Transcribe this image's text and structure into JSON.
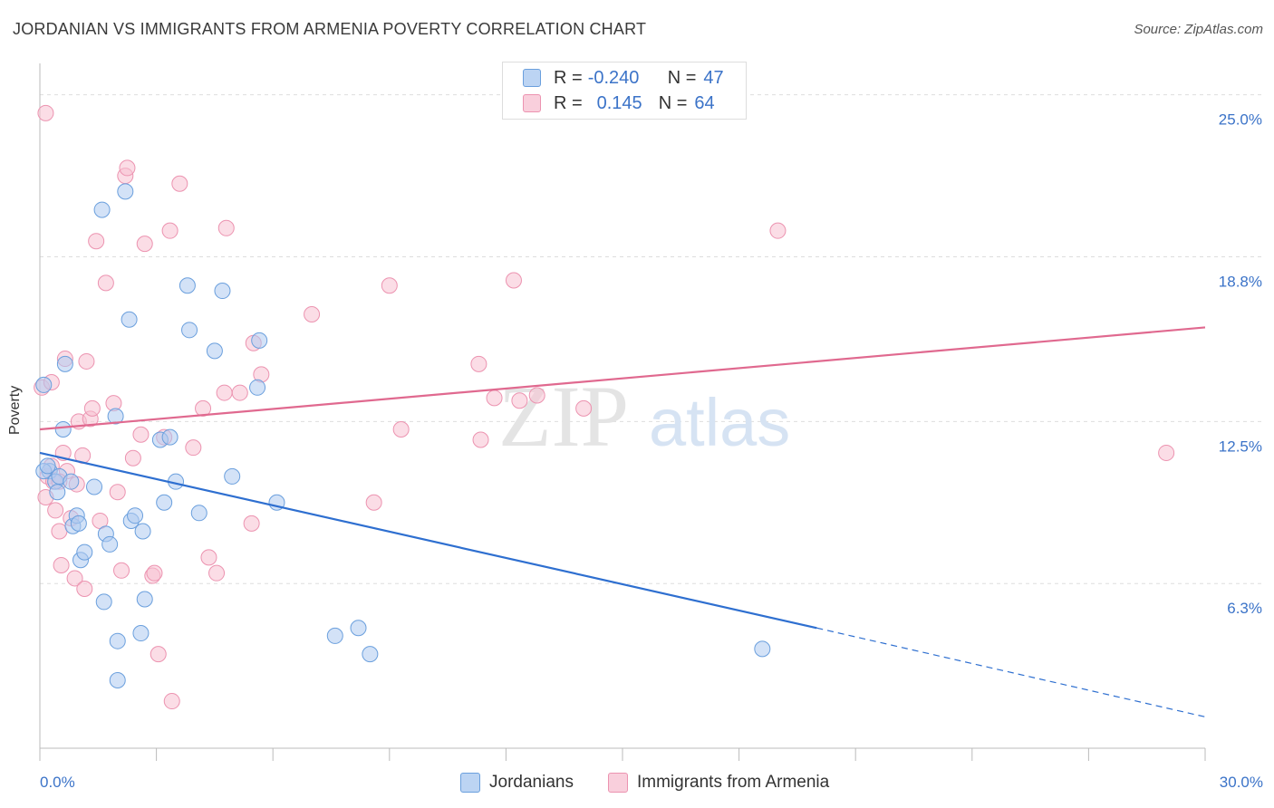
{
  "title": "JORDANIAN VS IMMIGRANTS FROM ARMENIA POVERTY CORRELATION CHART",
  "source": "Source: ZipAtlas.com",
  "watermark": {
    "zip": "ZIP",
    "atlas": "atlas"
  },
  "stats": {
    "r_label": "R =",
    "n_label": "N =",
    "jordanians": {
      "r": "-0.240",
      "n": "47"
    },
    "armenia": {
      "r": "0.145",
      "n": "64"
    }
  },
  "legend": {
    "jordanians": "Jordanians",
    "armenia": "Immigrants from Armenia"
  },
  "colors": {
    "blue_fill": "#aecbf0",
    "blue_stroke": "#6a9fdd",
    "blue_line": "#2e6fd0",
    "pink_fill": "#f7c1d2",
    "pink_stroke": "#ec93b0",
    "pink_line": "#e0698f",
    "tick_label": "#3b73c8",
    "grid": "#dddddd"
  },
  "chart_data": {
    "type": "scatter",
    "title": "JORDANIAN VS IMMIGRANTS FROM ARMENIA POVERTY CORRELATION CHART",
    "xlabel": "",
    "ylabel": "Poverty",
    "xlim": [
      0,
      30
    ],
    "ylim": [
      0,
      26.2
    ],
    "x_tick_labels": [
      "0.0%",
      "30.0%"
    ],
    "y_ticks": [
      6.3,
      12.5,
      18.8,
      25.0
    ],
    "y_tick_labels": [
      "6.3%",
      "12.5%",
      "18.8%",
      "25.0%"
    ],
    "grid": "horizontal dashed",
    "legend_position": "bottom-center",
    "series": [
      {
        "name": "Jordanians",
        "color": "#6a9fdd",
        "points": [
          [
            0.1,
            13.9
          ],
          [
            0.25,
            10.6
          ],
          [
            0.4,
            10.2
          ],
          [
            0.5,
            10.4
          ],
          [
            0.6,
            12.2
          ],
          [
            0.65,
            14.7
          ],
          [
            0.8,
            10.2
          ],
          [
            0.85,
            8.5
          ],
          [
            0.95,
            8.9
          ],
          [
            1.0,
            8.6
          ],
          [
            1.05,
            7.2
          ],
          [
            1.15,
            7.5
          ],
          [
            1.4,
            10.0
          ],
          [
            1.6,
            20.6
          ],
          [
            1.65,
            5.6
          ],
          [
            1.7,
            8.2
          ],
          [
            1.8,
            7.8
          ],
          [
            1.95,
            12.7
          ],
          [
            2.0,
            4.1
          ],
          [
            2.0,
            2.6
          ],
          [
            2.2,
            21.3
          ],
          [
            2.3,
            16.4
          ],
          [
            2.35,
            8.7
          ],
          [
            2.45,
            8.9
          ],
          [
            2.6,
            4.4
          ],
          [
            2.65,
            8.3
          ],
          [
            2.7,
            5.7
          ],
          [
            3.1,
            11.8
          ],
          [
            3.2,
            9.4
          ],
          [
            3.35,
            11.9
          ],
          [
            3.5,
            10.2
          ],
          [
            3.8,
            17.7
          ],
          [
            3.85,
            16.0
          ],
          [
            4.1,
            9.0
          ],
          [
            4.5,
            15.2
          ],
          [
            4.7,
            17.5
          ],
          [
            4.95,
            10.4
          ],
          [
            5.6,
            13.8
          ],
          [
            5.65,
            15.6
          ],
          [
            6.1,
            9.4
          ],
          [
            7.6,
            4.3
          ],
          [
            8.2,
            4.6
          ],
          [
            8.5,
            3.6
          ],
          [
            18.6,
            3.8
          ],
          [
            0.1,
            10.6
          ],
          [
            0.2,
            10.8
          ],
          [
            0.45,
            9.8
          ]
        ]
      },
      {
        "name": "Immigrants from Armenia",
        "color": "#ec93b0",
        "points": [
          [
            0.05,
            13.8
          ],
          [
            0.15,
            9.6
          ],
          [
            0.2,
            10.4
          ],
          [
            0.3,
            10.8
          ],
          [
            0.35,
            10.2
          ],
          [
            0.4,
            9.1
          ],
          [
            0.5,
            8.3
          ],
          [
            0.55,
            7.0
          ],
          [
            0.6,
            11.3
          ],
          [
            0.65,
            14.9
          ],
          [
            0.7,
            10.6
          ],
          [
            0.8,
            8.8
          ],
          [
            0.9,
            6.5
          ],
          [
            0.95,
            10.1
          ],
          [
            1.0,
            12.5
          ],
          [
            1.1,
            11.2
          ],
          [
            1.15,
            6.1
          ],
          [
            1.2,
            14.8
          ],
          [
            1.3,
            12.6
          ],
          [
            1.35,
            13.0
          ],
          [
            1.45,
            19.4
          ],
          [
            1.55,
            8.7
          ],
          [
            1.7,
            17.8
          ],
          [
            1.9,
            13.2
          ],
          [
            2.0,
            9.8
          ],
          [
            2.1,
            6.8
          ],
          [
            2.2,
            21.9
          ],
          [
            2.25,
            22.2
          ],
          [
            2.4,
            11.1
          ],
          [
            2.6,
            12.0
          ],
          [
            2.7,
            19.3
          ],
          [
            2.9,
            6.6
          ],
          [
            2.95,
            6.7
          ],
          [
            3.05,
            3.6
          ],
          [
            3.2,
            11.9
          ],
          [
            3.35,
            19.8
          ],
          [
            3.4,
            1.8
          ],
          [
            3.6,
            21.6
          ],
          [
            3.95,
            11.5
          ],
          [
            4.2,
            13.0
          ],
          [
            4.35,
            7.3
          ],
          [
            4.55,
            6.7
          ],
          [
            4.75,
            13.6
          ],
          [
            4.8,
            19.9
          ],
          [
            5.15,
            13.6
          ],
          [
            5.45,
            8.6
          ],
          [
            5.5,
            15.5
          ],
          [
            5.7,
            14.3
          ],
          [
            7.0,
            16.6
          ],
          [
            8.6,
            9.4
          ],
          [
            9.0,
            17.7
          ],
          [
            9.3,
            12.2
          ],
          [
            11.3,
            14.7
          ],
          [
            11.35,
            11.8
          ],
          [
            11.7,
            13.4
          ],
          [
            12.2,
            17.9
          ],
          [
            12.35,
            13.3
          ],
          [
            12.8,
            13.5
          ],
          [
            14.0,
            13.0
          ],
          [
            19.0,
            19.8
          ],
          [
            29.0,
            11.3
          ],
          [
            0.15,
            24.3
          ],
          [
            0.3,
            14.0
          ],
          [
            0.5,
            10.2
          ]
        ]
      }
    ],
    "trend_lines": [
      {
        "name": "Jordanians",
        "x": [
          0,
          20
        ],
        "y": [
          11.3,
          4.6
        ],
        "dashed_extension_to": [
          30,
          1.2
        ]
      },
      {
        "name": "Immigrants from Armenia",
        "x": [
          0,
          30
        ],
        "y": [
          12.2,
          16.1
        ]
      }
    ]
  }
}
